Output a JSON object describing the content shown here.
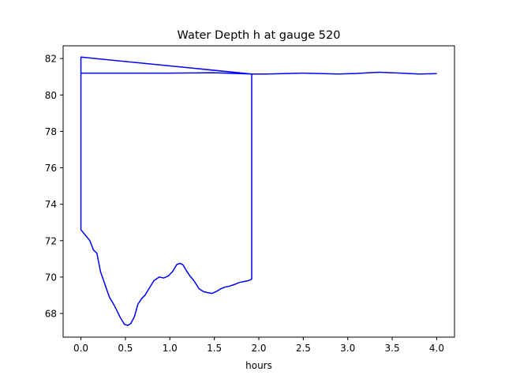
{
  "chart_data": {
    "type": "line",
    "title": "Water Depth h at gauge 520",
    "xlabel": "hours",
    "ylabel": "",
    "xlim": [
      -0.2,
      4.2
    ],
    "ylim": [
      66.7,
      82.7
    ],
    "grid": false,
    "xticks": [
      0.0,
      0.5,
      1.0,
      1.5,
      2.0,
      2.5,
      3.0,
      3.5,
      4.0
    ],
    "xtick_labels": [
      "0.0",
      "0.5",
      "1.0",
      "1.5",
      "2.0",
      "2.5",
      "3.0",
      "3.5",
      "4.0"
    ],
    "yticks": [
      68,
      70,
      72,
      74,
      76,
      78,
      80,
      82
    ],
    "ytick_labels": [
      "68",
      "70",
      "72",
      "74",
      "76",
      "78",
      "80",
      "82"
    ],
    "colors": {
      "line": "#0000ff",
      "axes": "#000000",
      "background": "#ffffff"
    },
    "series": [
      {
        "x": [
          0.0,
          0.0,
          0.05,
          0.1,
          0.14,
          0.18,
          0.22,
          0.27,
          0.32,
          0.38,
          0.44,
          0.49,
          0.53,
          0.56,
          0.6,
          0.64,
          0.68,
          0.72,
          0.77,
          0.82,
          0.88,
          0.93,
          0.98,
          1.03,
          1.08,
          1.12,
          1.15,
          1.18,
          1.22,
          1.27,
          1.33,
          1.38,
          1.42,
          1.47,
          1.52,
          1.57,
          1.62,
          1.67,
          1.73,
          1.78,
          1.83,
          1.88,
          1.92,
          1.92,
          1.92,
          0.0,
          0.0,
          1.0,
          1.5,
          1.92,
          2.1,
          2.5,
          2.9,
          3.1,
          3.35,
          3.6,
          3.8,
          4.0
        ],
        "y": [
          81.2,
          72.6,
          72.3,
          72.0,
          71.5,
          71.3,
          70.3,
          69.6,
          68.9,
          68.4,
          67.8,
          67.4,
          67.35,
          67.45,
          67.8,
          68.5,
          68.8,
          69.0,
          69.4,
          69.8,
          70.0,
          69.95,
          70.05,
          70.3,
          70.7,
          70.75,
          70.65,
          70.4,
          70.1,
          69.8,
          69.35,
          69.2,
          69.15,
          69.1,
          69.2,
          69.35,
          69.45,
          69.5,
          69.6,
          69.7,
          69.75,
          69.8,
          69.88,
          81.15,
          81.15,
          82.08,
          81.2,
          81.2,
          81.22,
          81.15,
          81.15,
          81.2,
          81.15,
          81.18,
          81.25,
          81.2,
          81.15,
          81.17
        ]
      }
    ]
  }
}
